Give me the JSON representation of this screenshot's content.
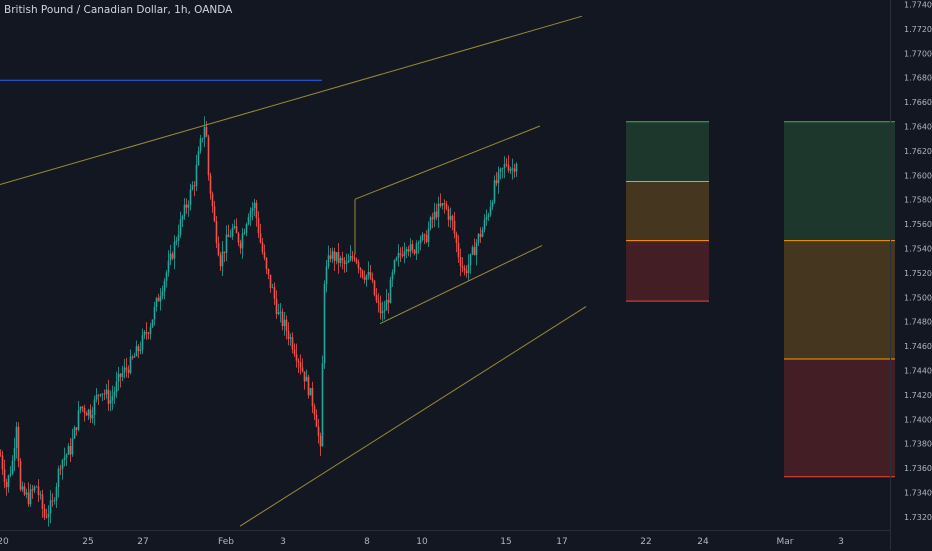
{
  "header": {
    "title": "British Pound / Canadian Dollar, 1h, OANDA"
  },
  "colors": {
    "background": "#131722",
    "axis_text": "#b2b5be",
    "up_candle": "#26a69a",
    "down_candle": "#ef5350",
    "trendline": "#9b8a3a",
    "blue_line": "#2962ff",
    "target_zone": "#1f3b2e",
    "mid_zone": "#4a3a1f",
    "stop_zone": "#4a1f26",
    "target_edge": "#4caf50",
    "mid_edge": "#ff9800",
    "stop_edge": "#f44336"
  },
  "chart_data": {
    "type": "candlestick",
    "title": "British Pound / Canadian Dollar, 1h, OANDA",
    "y_ticks": [
      "1.77400",
      "1.77200",
      "1.77000",
      "1.76800",
      "1.76600",
      "1.76400",
      "1.76200",
      "1.76000",
      "1.75800",
      "1.75600",
      "1.75400",
      "1.75200",
      "1.75000",
      "1.74800",
      "1.74600",
      "1.74400",
      "1.74200",
      "1.74000",
      "1.73800",
      "1.73600",
      "1.73400",
      "1.73200"
    ],
    "x_ticks": [
      "20",
      "25",
      "27",
      "Feb",
      "3",
      "8",
      "10",
      "15",
      "17",
      "22",
      "24",
      "Mar",
      "3"
    ],
    "ylim": [
      1.731,
      1.775
    ],
    "price_path": [
      [
        0,
        1.737
      ],
      [
        6,
        1.7345
      ],
      [
        12,
        1.7365
      ],
      [
        16,
        1.7398
      ],
      [
        20,
        1.734
      ],
      [
        28,
        1.7335
      ],
      [
        36,
        1.7345
      ],
      [
        44,
        1.732
      ],
      [
        52,
        1.733
      ],
      [
        60,
        1.7365
      ],
      [
        70,
        1.7375
      ],
      [
        80,
        1.741
      ],
      [
        90,
        1.7405
      ],
      [
        100,
        1.7425
      ],
      [
        110,
        1.7415
      ],
      [
        120,
        1.7435
      ],
      [
        130,
        1.7445
      ],
      [
        140,
        1.746
      ],
      [
        150,
        1.7478
      ],
      [
        160,
        1.7505
      ],
      [
        170,
        1.753
      ],
      [
        178,
        1.7555
      ],
      [
        186,
        1.7575
      ],
      [
        194,
        1.7595
      ],
      [
        200,
        1.7625
      ],
      [
        205,
        1.7645
      ],
      [
        208,
        1.76
      ],
      [
        214,
        1.756
      ],
      [
        220,
        1.753
      ],
      [
        226,
        1.7545
      ],
      [
        232,
        1.7555
      ],
      [
        240,
        1.7545
      ],
      [
        248,
        1.757
      ],
      [
        254,
        1.7575
      ],
      [
        260,
        1.7545
      ],
      [
        266,
        1.752
      ],
      [
        272,
        1.7505
      ],
      [
        278,
        1.7485
      ],
      [
        285,
        1.7475
      ],
      [
        292,
        1.7462
      ],
      [
        300,
        1.7445
      ],
      [
        308,
        1.7425
      ],
      [
        315,
        1.7405
      ],
      [
        320,
        1.7372
      ],
      [
        324,
        1.7515
      ],
      [
        330,
        1.7535
      ],
      [
        338,
        1.753
      ],
      [
        346,
        1.7525
      ],
      [
        354,
        1.7535
      ],
      [
        362,
        1.752
      ],
      [
        370,
        1.7515
      ],
      [
        376,
        1.7495
      ],
      [
        382,
        1.7485
      ],
      [
        388,
        1.75
      ],
      [
        394,
        1.7525
      ],
      [
        400,
        1.7535
      ],
      [
        406,
        1.7545
      ],
      [
        412,
        1.7535
      ],
      [
        418,
        1.755
      ],
      [
        424,
        1.7545
      ],
      [
        430,
        1.756
      ],
      [
        436,
        1.757
      ],
      [
        444,
        1.7575
      ],
      [
        452,
        1.756
      ],
      [
        458,
        1.7535
      ],
      [
        464,
        1.752
      ],
      [
        470,
        1.753
      ],
      [
        476,
        1.7545
      ],
      [
        482,
        1.7555
      ],
      [
        488,
        1.757
      ],
      [
        494,
        1.759
      ],
      [
        500,
        1.76
      ],
      [
        506,
        1.761
      ],
      [
        512,
        1.7605
      ],
      [
        516,
        1.7612
      ]
    ],
    "trendlines": [
      {
        "name": "upper-channel",
        "from": [
          0,
          1.7592
        ],
        "to": [
          582,
          1.773
        ]
      },
      {
        "name": "lower-channel",
        "from": [
          240,
          1.7312
        ],
        "to": [
          586,
          1.7492
        ]
      },
      {
        "name": "flag-top",
        "from": [
          355,
          1.758
        ],
        "to": [
          540,
          1.764
        ]
      },
      {
        "name": "flag-bottom",
        "from": [
          380,
          1.7478
        ],
        "to": [
          542,
          1.7542
        ]
      },
      {
        "name": "flag-left",
        "from": [
          355,
          1.758
        ],
        "to": [
          355,
          1.7535
        ]
      }
    ],
    "horizontal_line": {
      "from": [
        0,
        1.76775
      ],
      "to": [
        322,
        1.76775
      ]
    },
    "zones": [
      {
        "x": [
          626,
          709
        ],
        "levels": [
          1.76435,
          1.75945,
          1.7546,
          1.74965
        ]
      },
      {
        "x": [
          784,
          895
        ],
        "levels": [
          1.76435,
          1.7546,
          1.7449,
          1.73525
        ]
      }
    ]
  }
}
